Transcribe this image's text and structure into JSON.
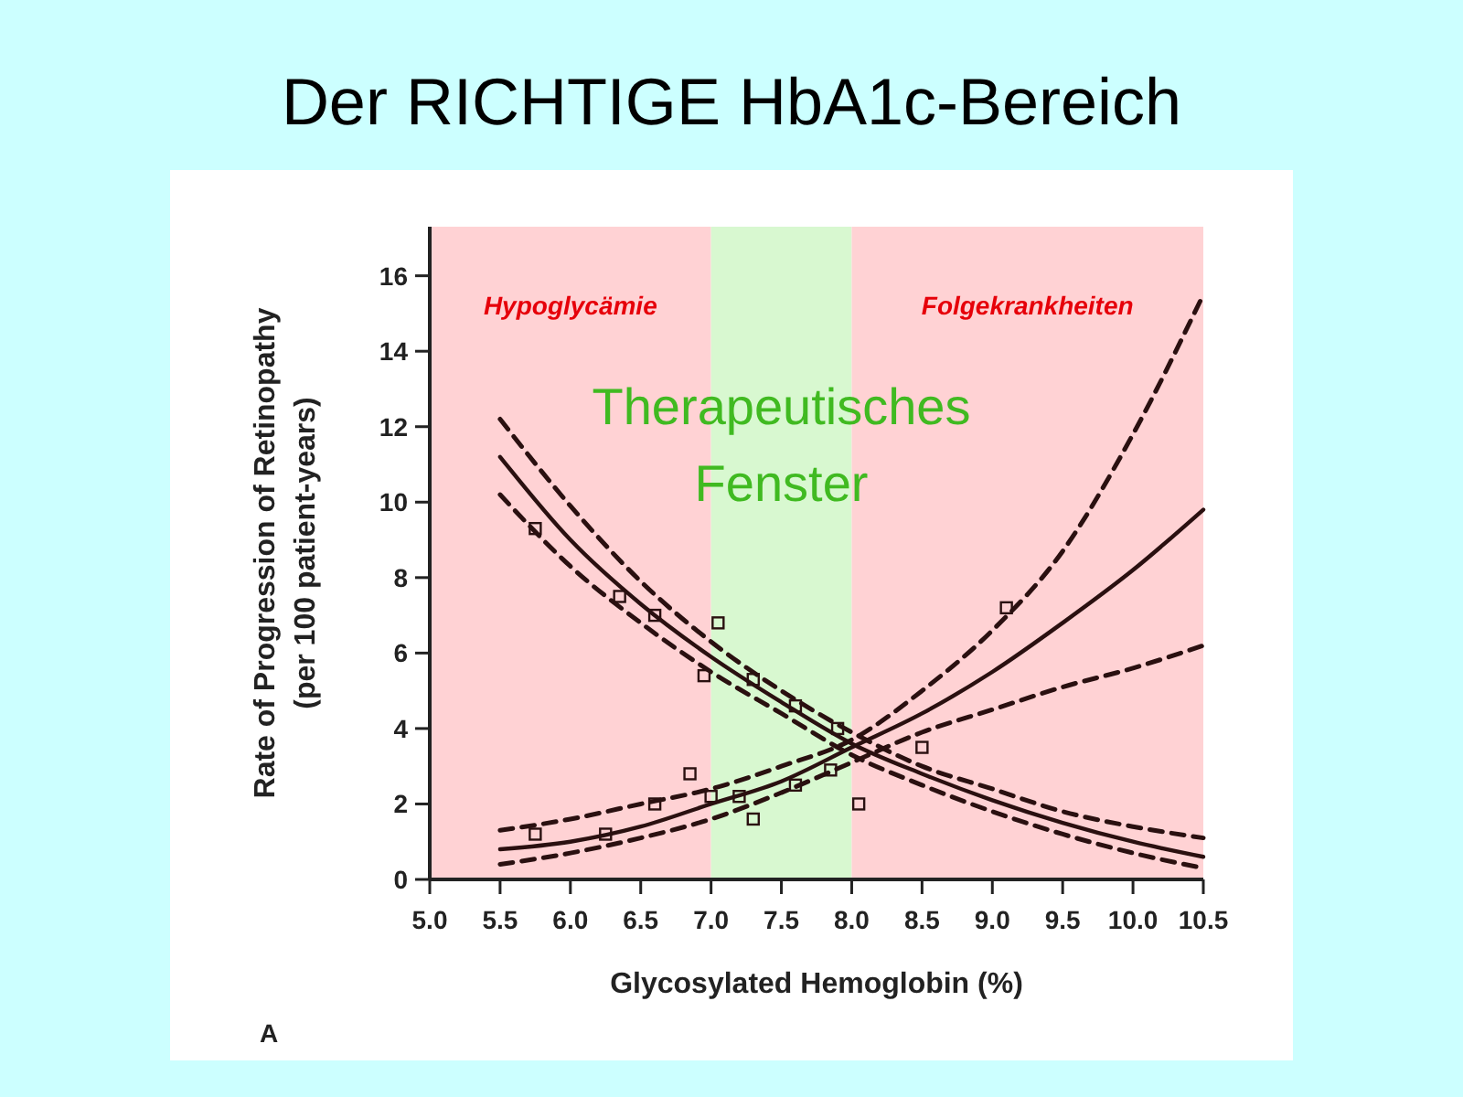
{
  "chart_data": {
    "type": "line",
    "title": "Der RICHTIGE HbA1c-Bereich",
    "xlabel": "Glycosylated Hemoglobin (%)",
    "ylabel": "Rate of Progression of Retinopathy\n(per 100 patient-years)",
    "xlim": [
      5.0,
      10.5
    ],
    "xticks": [
      {
        "value": 5,
        "label": "5.0"
      },
      5.5,
      {
        "value": 6,
        "label": "6.0"
      },
      6.5,
      {
        "value": 7,
        "label": "7.0"
      },
      7.5,
      {
        "value": 8,
        "label": "8.0"
      },
      8.5,
      {
        "value": 9,
        "label": "9.0"
      },
      9.5,
      {
        "value": 10,
        "label": "10.0"
      },
      10.5
    ],
    "ylim": [
      0,
      17.3
    ],
    "yticks": [
      0,
      2,
      4,
      6,
      8,
      10,
      12,
      14,
      16
    ],
    "x": [
      5.5,
      6.0,
      6.5,
      7.0,
      7.5,
      8.0,
      8.5,
      9.0,
      9.5,
      10.0,
      10.5
    ],
    "grid": false,
    "series": [
      {
        "type": "line",
        "line_style": "solid",
        "color": "#2a1010",
        "values": [
          11.2,
          9.0,
          7.3,
          5.9,
          4.7,
          3.6,
          2.8,
          2.1,
          1.5,
          1.0,
          0.6
        ]
      },
      {
        "type": "line",
        "line_style": "dashed",
        "color": "#2a1010",
        "values": [
          10.2,
          8.3,
          6.8,
          5.5,
          4.4,
          3.3,
          2.5,
          1.8,
          1.2,
          0.7,
          0.3
        ]
      },
      {
        "type": "line",
        "line_style": "dashed",
        "color": "#2a1010",
        "values": [
          12.2,
          9.9,
          7.9,
          6.3,
          5.0,
          3.9,
          3.0,
          2.4,
          1.8,
          1.4,
          1.1
        ]
      },
      {
        "type": "line",
        "line_style": "solid",
        "color": "#2a1010",
        "values": [
          0.8,
          1.0,
          1.4,
          2.0,
          2.6,
          3.5,
          4.4,
          5.5,
          6.8,
          8.2,
          9.8
        ]
      },
      {
        "type": "line",
        "line_style": "dashed",
        "color": "#2a1010",
        "values": [
          0.4,
          0.7,
          1.1,
          1.6,
          2.3,
          3.1,
          3.9,
          4.5,
          5.1,
          5.6,
          6.2
        ]
      },
      {
        "type": "line",
        "line_style": "dashed",
        "color": "#2a1010",
        "values": [
          1.3,
          1.6,
          2.0,
          2.4,
          3.0,
          3.7,
          5.0,
          6.6,
          8.7,
          11.8,
          15.5
        ]
      },
      {
        "type": "scatter",
        "color": "#2a1010",
        "marker": "square",
        "x": [
          5.75,
          6.35,
          6.6,
          6.95,
          7.05,
          7.3,
          7.6,
          7.9,
          8.05,
          8.5,
          9.1,
          5.75,
          6.25,
          6.6,
          6.85,
          7.0,
          7.2,
          7.3,
          7.6,
          7.85
        ],
        "values": [
          9.3,
          7.5,
          7.0,
          5.4,
          6.8,
          5.3,
          4.6,
          4.0,
          2.0,
          3.5,
          7.2,
          1.2,
          1.2,
          2.0,
          2.8,
          2.2,
          2.2,
          1.6,
          2.5,
          2.9
        ]
      }
    ],
    "bands": [
      {
        "axis": "x",
        "from": 5.0,
        "to": 7.0,
        "label": "Hypoglycämie",
        "color": "#ffd2d4"
      },
      {
        "axis": "x",
        "from": 7.0,
        "to": 8.0,
        "color": "#d8f8d0"
      },
      {
        "axis": "x",
        "from": 8.0,
        "to": 10.5,
        "label": "Folgekrankheiten",
        "color": "#ffd2d4"
      }
    ],
    "annotations": [
      "Therapeutisches Fenster",
      "A"
    ]
  }
}
